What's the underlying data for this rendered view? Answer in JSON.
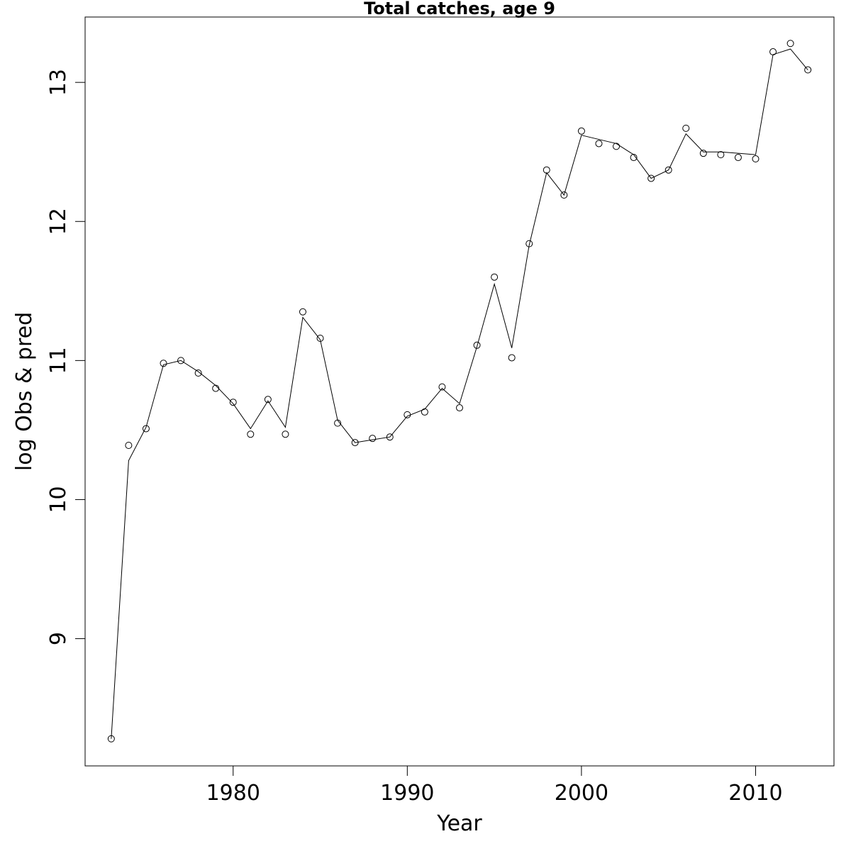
{
  "chart_data": {
    "type": "line",
    "title": "Total catches, age 9",
    "xlabel": "Year",
    "ylabel": "log Obs & pred",
    "xlim": [
      1971.5,
      2014.5
    ],
    "ylim": [
      8.085,
      13.47
    ],
    "x_ticks": [
      1980,
      1990,
      2000,
      2010
    ],
    "y_ticks": [
      9,
      10,
      11,
      12,
      13
    ],
    "grid": false,
    "legend": "none",
    "x": [
      1973,
      1974,
      1975,
      1976,
      1977,
      1978,
      1979,
      1980,
      1981,
      1982,
      1983,
      1984,
      1985,
      1986,
      1987,
      1988,
      1989,
      1990,
      1991,
      1992,
      1993,
      1994,
      1995,
      1996,
      1997,
      1998,
      1999,
      2000,
      2001,
      2002,
      2003,
      2004,
      2005,
      2006,
      2007,
      2008,
      2009,
      2010,
      2011,
      2012,
      2013
    ],
    "series": [
      {
        "marker": "open-circle",
        "values": [
          8.28,
          10.39,
          10.51,
          10.98,
          11.0,
          10.91,
          10.8,
          10.7,
          10.47,
          10.72,
          10.47,
          11.35,
          11.16,
          10.55,
          10.41,
          10.44,
          10.45,
          10.61,
          10.63,
          10.81,
          10.66,
          11.11,
          11.6,
          11.02,
          11.84,
          12.37,
          12.19,
          12.65,
          12.56,
          12.54,
          12.46,
          12.31,
          12.37,
          12.67,
          12.49,
          12.48,
          12.46,
          12.45,
          13.22,
          13.28,
          13.09
        ]
      },
      {
        "marker": "line",
        "values": [
          8.28,
          10.28,
          10.52,
          10.97,
          11.0,
          10.92,
          10.82,
          10.69,
          10.51,
          10.71,
          10.52,
          11.31,
          11.15,
          10.57,
          10.41,
          10.43,
          10.45,
          10.6,
          10.65,
          10.8,
          10.69,
          11.1,
          11.55,
          11.09,
          11.83,
          12.35,
          12.19,
          12.62,
          12.59,
          12.56,
          12.48,
          12.31,
          12.37,
          12.63,
          12.5,
          12.5,
          12.49,
          12.48,
          13.2,
          13.24,
          13.09
        ]
      }
    ]
  }
}
